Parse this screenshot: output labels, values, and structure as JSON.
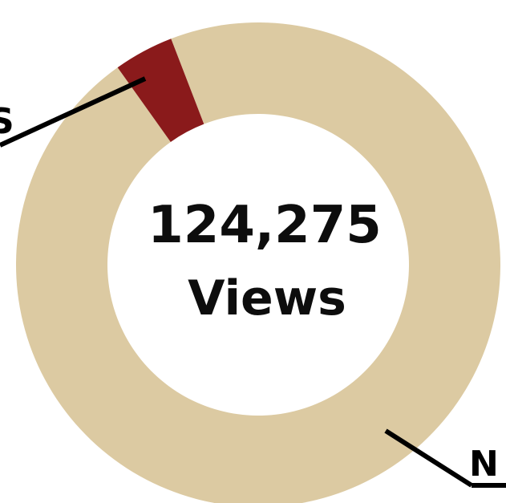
{
  "chart_data": {
    "type": "pie",
    "style": "donut",
    "center_text": {
      "line1": "124,275",
      "line2": "Views"
    },
    "slices": [
      {
        "label": "N",
        "value": 96,
        "color": "#dccaa2"
      },
      {
        "label": "S",
        "value": 4,
        "color": "#8a1a1b"
      }
    ]
  },
  "colors": {
    "background": "#ffffff",
    "text": "#0d0d0d",
    "leader": "#000000"
  }
}
